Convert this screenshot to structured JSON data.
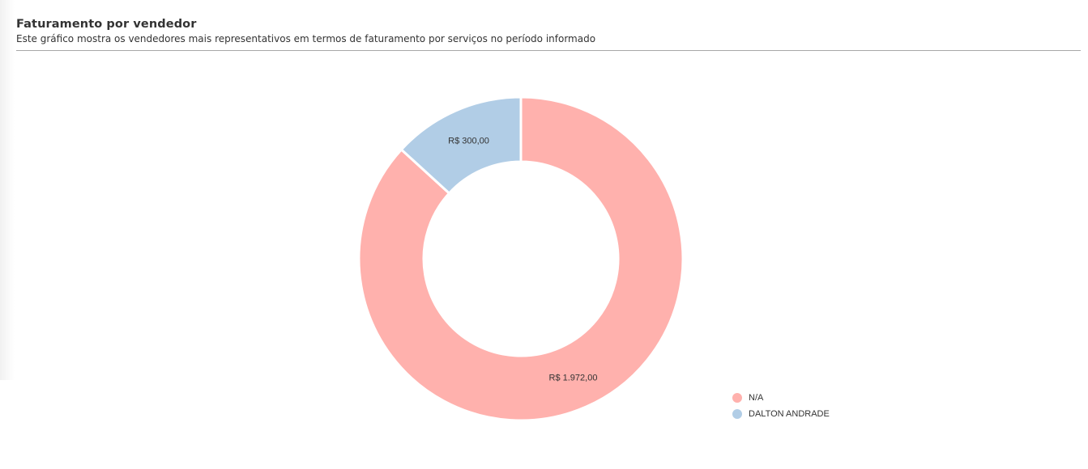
{
  "header": {
    "title": "Faturamento por vendedor",
    "subtitle": "Este gráfico mostra os vendedores mais representativos em termos de faturamento por serviços no período informado"
  },
  "chart_data": {
    "type": "pie",
    "variant": "doughnut",
    "categories": [
      "N/A",
      "DALTON ANDRADE"
    ],
    "values": [
      1972.0,
      300.0
    ],
    "value_labels": [
      "R$ 1.972,00",
      "R$ 300,00"
    ],
    "colors": [
      "#ffb1ad",
      "#b1cde6"
    ],
    "legend_position": "bottom-right",
    "legend": [
      {
        "label": "N/A",
        "color": "#ffb1ad"
      },
      {
        "label": "DALTON ANDRADE",
        "color": "#b1cde6"
      }
    ]
  }
}
